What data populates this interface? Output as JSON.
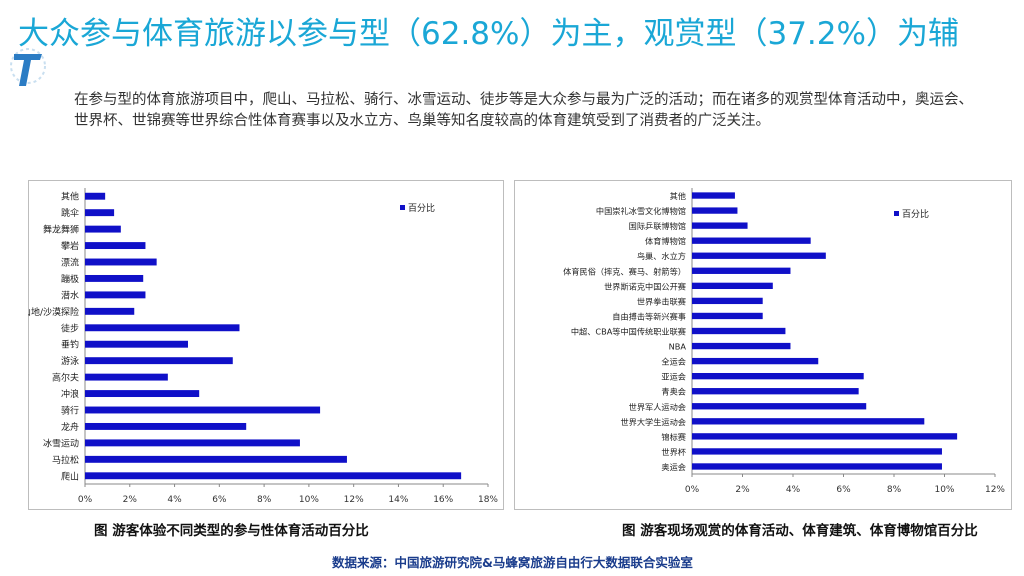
{
  "header": {
    "title": "大众参与体育旅游以参与型（62.8%）为主，观赏型（37.2%）为辅",
    "description": "在参与型的体育旅游项目中，爬山、马拉松、骑行、冰雪运动、徒步等是大众参与最为广泛的活动；而在诸多的观赏型体育活动中，奥运会、世界杯、世锦赛等世界综合性体育赛事以及水立方、鸟巢等知名度较高的体育建筑受到了消费者的广泛关注。"
  },
  "colors": {
    "bar": "#1010c8",
    "title": "#1aa7d6",
    "source": "#1a3c8c"
  },
  "chart_data": [
    {
      "type": "bar",
      "orientation": "horizontal",
      "categories": [
        "其他",
        "跳伞",
        "舞龙舞狮",
        "攀岩",
        "漂流",
        "蹦极",
        "潜水",
        "山地/沙漠探险",
        "徒步",
        "垂钓",
        "游泳",
        "高尔夫",
        "冲浪",
        "骑行",
        "龙舟",
        "冰雪运动",
        "马拉松",
        "爬山"
      ],
      "series": [
        {
          "name": "百分比",
          "values": [
            0.9,
            1.3,
            1.6,
            2.7,
            3.2,
            2.6,
            2.7,
            2.2,
            6.9,
            4.6,
            6.6,
            3.7,
            5.1,
            10.5,
            7.2,
            9.6,
            11.7,
            16.8
          ]
        }
      ],
      "xlim": [
        0,
        18
      ],
      "xticks": [
        "0%",
        "2%",
        "4%",
        "6%",
        "8%",
        "10%",
        "12%",
        "14%",
        "16%",
        "18%"
      ],
      "legend": "top-right",
      "caption": "图  游客体验不同类型的参与性体育活动百分比"
    },
    {
      "type": "bar",
      "orientation": "horizontal",
      "categories": [
        "其他",
        "中国崇礼冰雪文化博物馆",
        "国际乒联博物馆",
        "体育博物馆",
        "鸟巢、水立方",
        "体育民俗（摔克、赛马、射箭等）",
        "世界斯诺克中国公开赛",
        "世界拳击联赛",
        "自由搏击等新兴赛事",
        "中超、CBA等中国传统职业联赛",
        "NBA",
        "全运会",
        "亚运会",
        "青奥会",
        "世界军人运动会",
        "世界大学生运动会",
        "锦标赛",
        "世界杯",
        "奥运会"
      ],
      "series": [
        {
          "name": "百分比",
          "values": [
            1.7,
            1.8,
            2.2,
            4.7,
            5.3,
            3.9,
            3.2,
            2.8,
            2.8,
            3.7,
            3.9,
            5.0,
            6.8,
            6.6,
            6.9,
            9.2,
            10.5,
            9.9,
            9.9
          ]
        }
      ],
      "xlim": [
        0,
        12
      ],
      "xticks": [
        "0%",
        "2%",
        "4%",
        "6%",
        "8%",
        "10%",
        "12%"
      ],
      "legend": "top-right",
      "caption": "图  游客现场观赏的体育活动、体育建筑、体育博物馆百分比"
    }
  ],
  "source": "数据来源：中国旅游研究院&马蜂窝旅游自由行大数据联合实验室"
}
